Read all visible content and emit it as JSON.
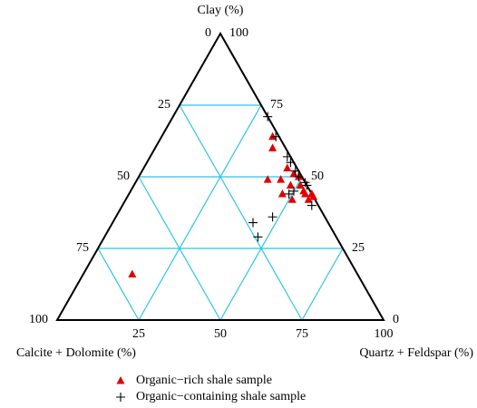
{
  "chart_data": {
    "type": "ternary",
    "lim": [
      0,
      100
    ],
    "axes": [
      {
        "key": "clay",
        "label": "Clay (%)",
        "ticks": [
          0,
          25,
          50,
          75,
          100
        ]
      },
      {
        "key": "carbonate",
        "label": "Calcite + Dolomite (%)",
        "ticks": [
          0,
          25,
          50,
          75,
          100
        ]
      },
      {
        "key": "quartz",
        "label": "Quartz + Feldspar (%)",
        "ticks": [
          25,
          50,
          75,
          100
        ]
      }
    ],
    "grid": true,
    "grid_color": "#2cc3e6",
    "series": [
      {
        "name": "Organic−rich shale sample",
        "color": "#e00000",
        "marker": "triangle",
        "clay": [
          16,
          64,
          60,
          53,
          49,
          49,
          51,
          50,
          47,
          47,
          45,
          44,
          44,
          42,
          42,
          43,
          44
        ],
        "quartz": [
          15,
          34,
          36,
          44,
          40,
          44,
          47,
          49,
          51,
          48,
          53,
          54,
          56,
          51,
          56,
          57,
          47
        ],
        "carbonate": [
          69,
          2,
          4,
          3,
          11,
          7,
          2,
          1,
          2,
          5,
          2,
          2,
          0,
          7,
          2,
          0,
          9
        ]
      },
      {
        "name": "Organic−containing shale sample",
        "color": "#000000",
        "marker": "cross",
        "clay": [
          71,
          64,
          57,
          55,
          52,
          50,
          48,
          47,
          45,
          44,
          40,
          36,
          34,
          29
        ],
        "quartz": [
          29,
          35,
          42,
          44,
          47,
          49,
          52,
          53,
          50,
          49,
          58,
          48,
          43,
          47
        ],
        "carbonate": [
          0,
          1,
          1,
          1,
          1,
          1,
          0,
          0,
          5,
          7,
          2,
          16,
          23,
          24
        ]
      }
    ]
  }
}
